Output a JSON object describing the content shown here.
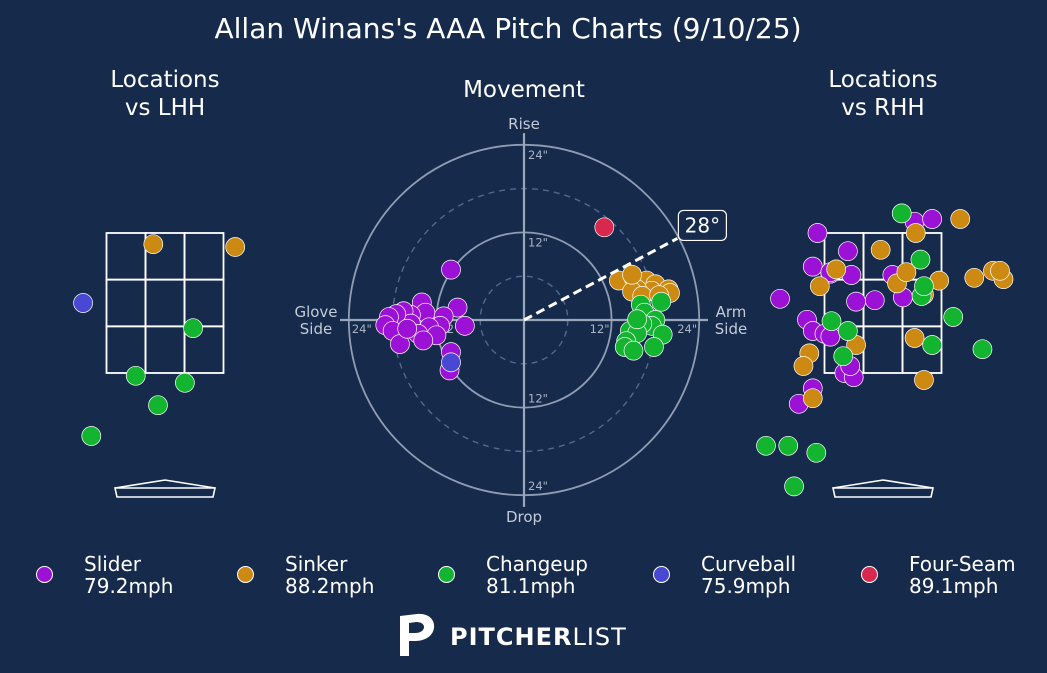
{
  "title": "Allan Winans's AAA Pitch Charts (9/10/25)",
  "brand": {
    "name_bold": "PITCHER",
    "name_light": "LIST"
  },
  "colors": {
    "background": "#162a4c",
    "Slider": "#9b12d6",
    "Sinker": "#cc8a12",
    "Changeup": "#13b430",
    "Curveball": "#4848d4",
    "Four-Seam": "#d8284e"
  },
  "legend": [
    {
      "name": "Slider",
      "speed": "79.2mph",
      "color": "#9b12d6"
    },
    {
      "name": "Sinker",
      "speed": "88.2mph",
      "color": "#cc8a12"
    },
    {
      "name": "Changeup",
      "speed": "81.1mph",
      "color": "#13b430"
    },
    {
      "name": "Curveball",
      "speed": "75.9mph",
      "color": "#4848d4"
    },
    {
      "name": "Four-Seam",
      "speed": "89.1mph",
      "color": "#d8284e"
    }
  ],
  "chart_data": [
    {
      "type": "scatter",
      "title_lines": [
        "Locations",
        "vs LHH"
      ],
      "x_units": "zone widths from plate center (catcher view)",
      "y_units": "zone heights above zone center",
      "zone": {
        "cols": 3,
        "rows": 3
      },
      "points": [
        {
          "pitch": "Sinker",
          "x": -0.1,
          "y": 0.42
        },
        {
          "pitch": "Sinker",
          "x": 0.6,
          "y": 0.4
        },
        {
          "pitch": "Curveball",
          "x": -0.7,
          "y": 0.0
        },
        {
          "pitch": "Changeup",
          "x": 0.24,
          "y": -0.18
        },
        {
          "pitch": "Changeup",
          "x": -0.25,
          "y": -0.52
        },
        {
          "pitch": "Changeup",
          "x": 0.17,
          "y": -0.57
        },
        {
          "pitch": "Changeup",
          "x": -0.06,
          "y": -0.73
        },
        {
          "pitch": "Changeup",
          "x": -0.63,
          "y": -0.95
        }
      ]
    },
    {
      "type": "scatter",
      "subtype": "polar-movement",
      "title": "Movement",
      "labels": {
        "top": "Rise",
        "bottom": "Drop",
        "left": [
          "Glove",
          "Side"
        ],
        "right": [
          "Arm",
          "Side"
        ]
      },
      "units": "inches",
      "rings": [
        {
          "value": 6,
          "style": "dashed"
        },
        {
          "value": 12,
          "style": "solid",
          "label": "12\""
        },
        {
          "value": 18,
          "style": "dashed"
        },
        {
          "value": 24,
          "style": "solid",
          "label": "24\""
        }
      ],
      "arm_angle": {
        "degrees": 28,
        "label": "28°"
      },
      "points": [
        {
          "pitch": "Four-Seam",
          "x": 11,
          "y": 12.7
        },
        {
          "pitch": "Slider",
          "x": -10,
          "y": 6.9
        },
        {
          "pitch": "Slider",
          "x": -9.1,
          "y": 1.7
        },
        {
          "pitch": "Slider",
          "x": -14,
          "y": 2.4
        },
        {
          "pitch": "Slider",
          "x": -13.5,
          "y": 1
        },
        {
          "pitch": "Slider",
          "x": -11,
          "y": 0.5
        },
        {
          "pitch": "Slider",
          "x": -11.5,
          "y": -0.8
        },
        {
          "pitch": "Slider",
          "x": -15.5,
          "y": 0.7
        },
        {
          "pitch": "Slider",
          "x": -16.5,
          "y": 1.2
        },
        {
          "pitch": "Slider",
          "x": -15.5,
          "y": -0.5
        },
        {
          "pitch": "Slider",
          "x": -17.5,
          "y": 0.8
        },
        {
          "pitch": "Slider",
          "x": -18.5,
          "y": 0.4
        },
        {
          "pitch": "Slider",
          "x": -19,
          "y": -0.7
        },
        {
          "pitch": "Slider",
          "x": -18,
          "y": -1.5
        },
        {
          "pitch": "Slider",
          "x": -13,
          "y": -1
        },
        {
          "pitch": "Slider",
          "x": -14.5,
          "y": -1.9
        },
        {
          "pitch": "Slider",
          "x": -12,
          "y": -2.1
        },
        {
          "pitch": "Slider",
          "x": -13.8,
          "y": -2.8
        },
        {
          "pitch": "Slider",
          "x": -17,
          "y": -3.3
        },
        {
          "pitch": "Slider",
          "x": -10,
          "y": -4.4
        },
        {
          "pitch": "Slider",
          "x": -10.2,
          "y": -6.9
        },
        {
          "pitch": "Slider",
          "x": -8.1,
          "y": -0.8
        },
        {
          "pitch": "Slider",
          "x": -16,
          "y": -1.2
        },
        {
          "pitch": "Curveball",
          "x": -10,
          "y": -5.8
        },
        {
          "pitch": "Sinker",
          "x": 13,
          "y": 5.4
        },
        {
          "pitch": "Sinker",
          "x": 15,
          "y": 5.8
        },
        {
          "pitch": "Sinker",
          "x": 16.8,
          "y": 5.4
        },
        {
          "pitch": "Sinker",
          "x": 18,
          "y": 4.9
        },
        {
          "pitch": "Sinker",
          "x": 19.8,
          "y": 4.2
        },
        {
          "pitch": "Sinker",
          "x": 17.5,
          "y": 4
        },
        {
          "pitch": "Sinker",
          "x": 15.5,
          "y": 4.2
        },
        {
          "pitch": "Sinker",
          "x": 14.8,
          "y": 3.9
        },
        {
          "pitch": "Sinker",
          "x": 20,
          "y": 3.7
        },
        {
          "pitch": "Sinker",
          "x": 16.2,
          "y": 3.3
        },
        {
          "pitch": "Sinker",
          "x": 18.5,
          "y": 3.4
        },
        {
          "pitch": "Sinker",
          "x": 14.8,
          "y": 6.2
        },
        {
          "pitch": "Changeup",
          "x": 18.8,
          "y": 2.5
        },
        {
          "pitch": "Changeup",
          "x": 16,
          "y": 2.1
        },
        {
          "pitch": "Changeup",
          "x": 16.5,
          "y": 1
        },
        {
          "pitch": "Changeup",
          "x": 18,
          "y": 0
        },
        {
          "pitch": "Changeup",
          "x": 17.5,
          "y": -0.8
        },
        {
          "pitch": "Changeup",
          "x": 16.2,
          "y": -0.5
        },
        {
          "pitch": "Changeup",
          "x": 14.5,
          "y": -1.5
        },
        {
          "pitch": "Changeup",
          "x": 15.5,
          "y": -1.8
        },
        {
          "pitch": "Changeup",
          "x": 19,
          "y": -2
        },
        {
          "pitch": "Changeup",
          "x": 14,
          "y": -2.9
        },
        {
          "pitch": "Changeup",
          "x": 13.8,
          "y": -3.7
        },
        {
          "pitch": "Changeup",
          "x": 15,
          "y": -4.2
        },
        {
          "pitch": "Changeup",
          "x": 17.8,
          "y": -3.7
        },
        {
          "pitch": "Changeup",
          "x": 15.5,
          "y": 0.1
        }
      ]
    },
    {
      "type": "scatter",
      "title_lines": [
        "Locations",
        "vs RHH"
      ],
      "x_units": "zone widths from plate center (catcher view)",
      "y_units": "zone heights above zone center",
      "zone": {
        "cols": 3,
        "rows": 3
      },
      "points": [
        {
          "pitch": "Slider",
          "x": -0.6,
          "y": 0.26
        },
        {
          "pitch": "Slider",
          "x": -0.3,
          "y": 0.37
        },
        {
          "pitch": "Slider",
          "x": -0.88,
          "y": 0.03
        },
        {
          "pitch": "Slider",
          "x": -0.45,
          "y": 0.21
        },
        {
          "pitch": "Slider",
          "x": -0.27,
          "y": 0.2
        },
        {
          "pitch": "Slider",
          "x": -0.23,
          "y": 0.01
        },
        {
          "pitch": "Slider",
          "x": -0.07,
          "y": 0.02
        },
        {
          "pitch": "Slider",
          "x": 0.08,
          "y": 0.2
        },
        {
          "pitch": "Slider",
          "x": 0.27,
          "y": 0.58
        },
        {
          "pitch": "Slider",
          "x": 0.42,
          "y": 0.6
        },
        {
          "pitch": "Slider",
          "x": -0.65,
          "y": -0.12
        },
        {
          "pitch": "Slider",
          "x": -0.6,
          "y": -0.2
        },
        {
          "pitch": "Slider",
          "x": -0.5,
          "y": -0.22
        },
        {
          "pitch": "Slider",
          "x": -0.45,
          "y": -0.24
        },
        {
          "pitch": "Slider",
          "x": -0.33,
          "y": -0.5
        },
        {
          "pitch": "Slider",
          "x": -0.25,
          "y": -0.53
        },
        {
          "pitch": "Slider",
          "x": -0.28,
          "y": -0.45
        },
        {
          "pitch": "Slider",
          "x": -0.6,
          "y": -0.61
        },
        {
          "pitch": "Slider",
          "x": -0.72,
          "y": -0.72
        },
        {
          "pitch": "Slider",
          "x": -0.56,
          "y": 0.5
        },
        {
          "pitch": "Slider",
          "x": 0.17,
          "y": 0.04
        },
        {
          "pitch": "Slider",
          "x": -0.45,
          "y": 0.22
        },
        {
          "pitch": "Sinker",
          "x": -0.54,
          "y": 0.12
        },
        {
          "pitch": "Sinker",
          "x": -0.4,
          "y": 0.24
        },
        {
          "pitch": "Sinker",
          "x": -0.02,
          "y": 0.38
        },
        {
          "pitch": "Sinker",
          "x": 0.12,
          "y": 0.14
        },
        {
          "pitch": "Sinker",
          "x": 0.2,
          "y": 0.22
        },
        {
          "pitch": "Sinker",
          "x": 0.28,
          "y": 0.5
        },
        {
          "pitch": "Sinker",
          "x": 0.35,
          "y": 0.06
        },
        {
          "pitch": "Sinker",
          "x": 0.48,
          "y": 0.16
        },
        {
          "pitch": "Sinker",
          "x": 0.66,
          "y": 0.6
        },
        {
          "pitch": "Sinker",
          "x": 0.78,
          "y": 0.18
        },
        {
          "pitch": "Sinker",
          "x": 0.94,
          "y": 0.23
        },
        {
          "pitch": "Sinker",
          "x": 1.03,
          "y": 0.17
        },
        {
          "pitch": "Sinker",
          "x": 1.0,
          "y": 0.23
        },
        {
          "pitch": "Sinker",
          "x": -0.23,
          "y": -0.3
        },
        {
          "pitch": "Sinker",
          "x": -0.63,
          "y": -0.36
        },
        {
          "pitch": "Sinker",
          "x": -0.68,
          "y": -0.45
        },
        {
          "pitch": "Sinker",
          "x": -0.6,
          "y": -0.68
        },
        {
          "pitch": "Sinker",
          "x": 0.27,
          "y": -0.25
        },
        {
          "pitch": "Sinker",
          "x": 0.35,
          "y": -0.55
        },
        {
          "pitch": "Changeup",
          "x": 0.16,
          "y": 0.64
        },
        {
          "pitch": "Changeup",
          "x": 0.33,
          "y": 0.05
        },
        {
          "pitch": "Changeup",
          "x": 0.35,
          "y": 0.12
        },
        {
          "pitch": "Changeup",
          "x": 0.32,
          "y": 0.31
        },
        {
          "pitch": "Changeup",
          "x": -0.44,
          "y": -0.13
        },
        {
          "pitch": "Changeup",
          "x": -0.3,
          "y": -0.2
        },
        {
          "pitch": "Changeup",
          "x": -0.34,
          "y": -0.38
        },
        {
          "pitch": "Changeup",
          "x": 0.6,
          "y": -0.1
        },
        {
          "pitch": "Changeup",
          "x": 0.42,
          "y": -0.3
        },
        {
          "pitch": "Changeup",
          "x": 0.85,
          "y": -0.33
        },
        {
          "pitch": "Changeup",
          "x": -0.81,
          "y": -1.02
        },
        {
          "pitch": "Changeup",
          "x": -0.57,
          "y": -1.07
        },
        {
          "pitch": "Changeup",
          "x": -0.76,
          "y": -1.31
        },
        {
          "pitch": "Changeup",
          "x": -0.38,
          "y": -1.93
        },
        {
          "pitch": "Changeup",
          "x": -1.0,
          "y": -1.02
        }
      ]
    }
  ]
}
